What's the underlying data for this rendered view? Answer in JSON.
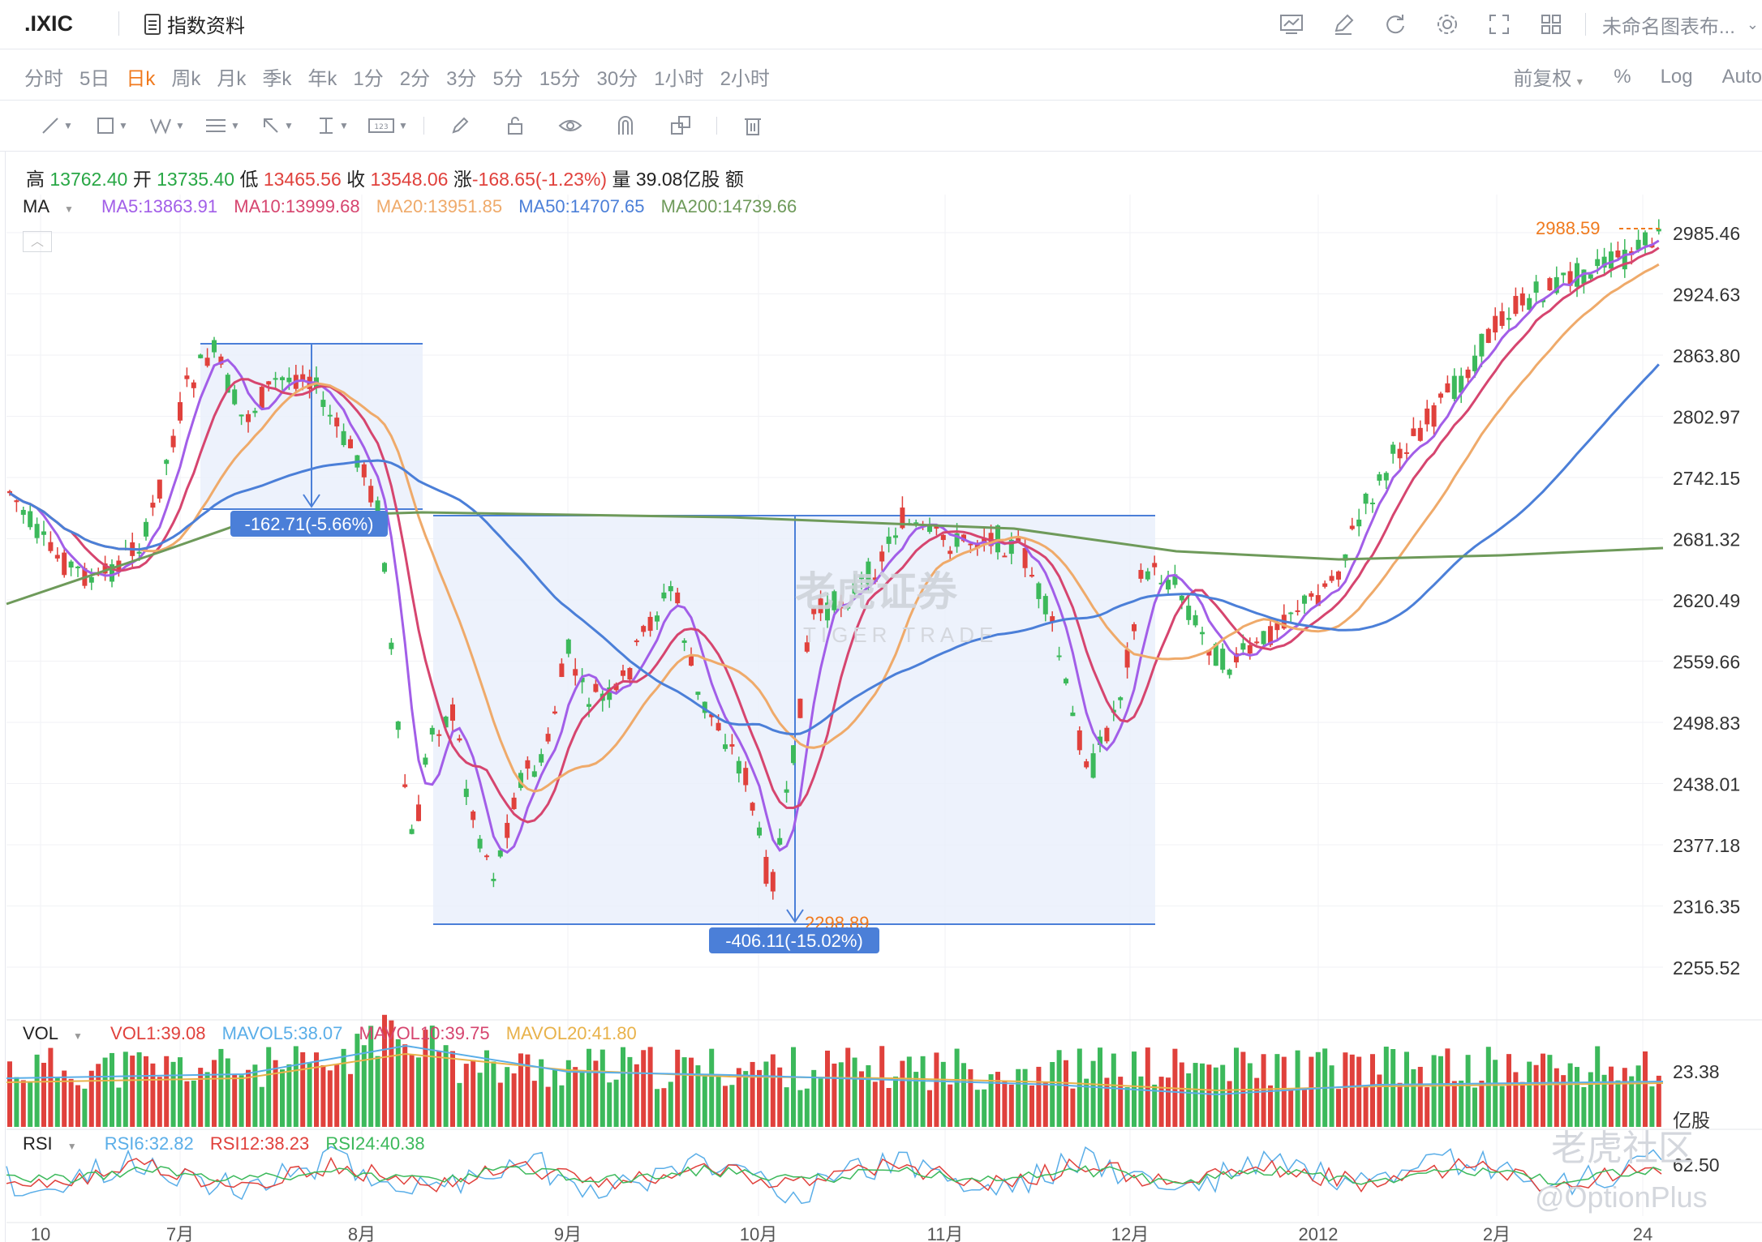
{
  "topbar": {
    "symbol": ".IXIC",
    "info_label": "指数资料",
    "chart_name": "未命名图表布...",
    "icons": [
      "indicator-icon",
      "edit-icon",
      "refresh-icon",
      "settings-icon",
      "fullscreen-icon",
      "layout-icon"
    ]
  },
  "periods": [
    "分时",
    "5日",
    "日k",
    "周k",
    "月k",
    "季k",
    "年k",
    "1分",
    "2分",
    "3分",
    "5分",
    "15分",
    "30分",
    "1小时",
    "2小时"
  ],
  "active_period": "日k",
  "period_right": {
    "adjust": "前复权",
    "percent": "%",
    "log": "Log",
    "auto": "Auto"
  },
  "quote": {
    "high_label": "高",
    "high": "13762.40",
    "open_label": "开",
    "open": "13735.40",
    "low_label": "低",
    "low": "13465.56",
    "close_label": "收",
    "close": "13548.06",
    "change_label": "涨",
    "change": "-168.65(-1.23%)",
    "volume_label": "量",
    "volume": "39.08亿股",
    "amount_label": "额"
  },
  "ma": {
    "label": "MA",
    "ma5": "MA5:13863.91",
    "ma10": "MA10:13999.68",
    "ma20": "MA20:13951.85",
    "ma50": "MA50:14707.65",
    "ma200": "MA200:14739.66"
  },
  "colors": {
    "up": "#e0413c",
    "down": "#3cb95b",
    "ma5": "#a25ee8",
    "ma10": "#d6456f",
    "ma20": "#efaa6a",
    "ma50": "#4b7fd8",
    "ma200": "#6e9a5a",
    "measure": "#4b7fd8"
  },
  "price_axis": [
    "2985.46",
    "2924.63",
    "2863.80",
    "2802.97",
    "2742.15",
    "2681.32",
    "2620.49",
    "2559.66",
    "2498.83",
    "2438.01",
    "2377.18",
    "2316.35",
    "2255.52"
  ],
  "price_marker": "2988.59",
  "low_marker": "2298.89",
  "measure_1": "-162.71(-5.66%)",
  "measure_2": "-406.11(-15.02%)",
  "vol": {
    "label": "VOL",
    "vol1": "VOL1:39.08",
    "mavol5": "MAVOL5:38.07",
    "mavol10": "MAVOL10:39.75",
    "mavol20": "MAVOL20:41.80",
    "axis_top": "23.38",
    "axis_unit": "亿股"
  },
  "rsi": {
    "label": "RSI",
    "rsi6": "RSI6:32.82",
    "rsi12": "RSI12:38.23",
    "rsi24": "RSI24:40.38",
    "axis": "62.50"
  },
  "x_axis": [
    "10",
    "7月",
    "8月",
    "9月",
    "10月",
    "11月",
    "12月",
    "2012",
    "2月",
    "24"
  ],
  "watermarks": {
    "center": "老虎证券",
    "center_sub": "TIGER TRADE",
    "corner": "老虎社区",
    "handle": "@OptionPlus"
  }
}
